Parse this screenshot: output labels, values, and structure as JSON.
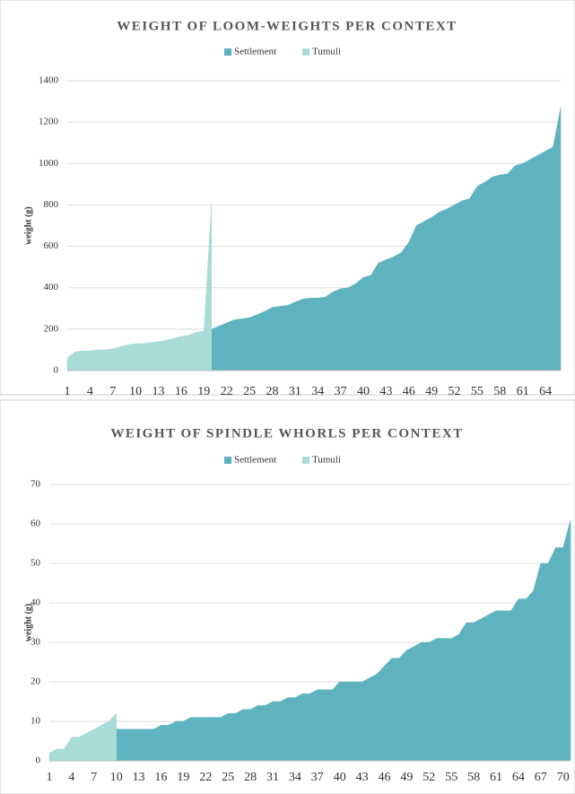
{
  "chart_data": [
    {
      "type": "area",
      "title": "WEIGHT OF LOOM-WEIGHTS PER CONTEXT",
      "y_label": "weight (g)",
      "x": [
        1,
        2,
        3,
        4,
        5,
        6,
        7,
        8,
        9,
        10,
        11,
        12,
        13,
        14,
        15,
        16,
        17,
        18,
        19,
        20,
        21,
        22,
        23,
        24,
        25,
        26,
        27,
        28,
        29,
        30,
        31,
        32,
        33,
        34,
        35,
        36,
        37,
        38,
        39,
        40,
        41,
        42,
        43,
        44,
        45,
        46,
        47,
        48,
        49,
        50,
        51,
        52,
        53,
        54,
        55,
        56,
        57,
        58,
        59,
        60,
        61,
        62,
        63,
        64,
        65,
        66
      ],
      "xlim": [
        1,
        66
      ],
      "xticks": [
        1,
        4,
        7,
        10,
        13,
        16,
        19,
        22,
        25,
        28,
        31,
        34,
        37,
        40,
        43,
        46,
        49,
        52,
        55,
        58,
        61,
        64
      ],
      "ylim": [
        0,
        1400
      ],
      "yticks": [
        0,
        200,
        400,
        600,
        800,
        1000,
        1200,
        1400
      ],
      "grid": true,
      "series": [
        {
          "name": "Settlement",
          "color": "#5fb3bf",
          "values": [
            null,
            null,
            null,
            null,
            null,
            null,
            null,
            null,
            null,
            null,
            null,
            null,
            null,
            null,
            null,
            null,
            null,
            null,
            null,
            200,
            215,
            230,
            245,
            250,
            255,
            270,
            285,
            305,
            310,
            315,
            330,
            345,
            350,
            350,
            355,
            380,
            395,
            400,
            420,
            450,
            460,
            520,
            535,
            550,
            570,
            620,
            700,
            720,
            740,
            765,
            780,
            800,
            820,
            830,
            890,
            910,
            935,
            945,
            950,
            990,
            1000,
            1020,
            1040,
            1060,
            1080,
            1270
          ]
        },
        {
          "name": "Tumuli",
          "color": "#a9dcd6",
          "values": [
            60,
            90,
            95,
            95,
            100,
            100,
            105,
            115,
            125,
            130,
            130,
            135,
            140,
            145,
            155,
            165,
            170,
            185,
            190,
            810,
            null,
            null,
            null,
            null,
            null,
            null,
            null,
            null,
            null,
            null,
            null,
            null,
            null,
            null,
            null,
            null,
            null,
            null,
            null,
            null,
            null,
            null,
            null,
            null,
            null,
            null,
            null,
            null,
            null,
            null,
            null,
            null,
            null,
            null,
            null,
            null,
            null,
            null,
            null,
            null,
            null,
            null,
            null,
            null,
            null,
            null
          ]
        }
      ]
    },
    {
      "type": "area",
      "title": "WEIGHT OF SPINDLE WHORLS PER CONTEXT",
      "y_label": "weight (g)",
      "x": [
        1,
        2,
        3,
        4,
        5,
        6,
        7,
        8,
        9,
        10,
        11,
        12,
        13,
        14,
        15,
        16,
        17,
        18,
        19,
        20,
        21,
        22,
        23,
        24,
        25,
        26,
        27,
        28,
        29,
        30,
        31,
        32,
        33,
        34,
        35,
        36,
        37,
        38,
        39,
        40,
        41,
        42,
        43,
        44,
        45,
        46,
        47,
        48,
        49,
        50,
        51,
        52,
        53,
        54,
        55,
        56,
        57,
        58,
        59,
        60,
        61,
        62,
        63,
        64,
        65,
        66,
        67,
        68,
        69,
        70,
        71
      ],
      "xlim": [
        1,
        71
      ],
      "xticks": [
        1,
        4,
        7,
        10,
        13,
        16,
        19,
        22,
        25,
        28,
        31,
        34,
        37,
        40,
        43,
        46,
        49,
        52,
        55,
        58,
        61,
        64,
        67,
        70
      ],
      "ylim": [
        0,
        70
      ],
      "yticks": [
        0,
        10,
        20,
        30,
        40,
        50,
        60,
        70
      ],
      "grid": true,
      "series": [
        {
          "name": "Settlement",
          "color": "#5fb3bf",
          "values": [
            null,
            null,
            null,
            null,
            null,
            null,
            null,
            null,
            null,
            8,
            8,
            8,
            8,
            8,
            8,
            9,
            9,
            10,
            10,
            11,
            11,
            11,
            11,
            11,
            12,
            12,
            13,
            13,
            14,
            14,
            15,
            15,
            16,
            16,
            17,
            17,
            18,
            18,
            18,
            20,
            20,
            20,
            20,
            21,
            22,
            24,
            26,
            26,
            28,
            29,
            30,
            30,
            31,
            31,
            31,
            32,
            35,
            35,
            36,
            37,
            38,
            38,
            38,
            41,
            41,
            43,
            50,
            50,
            54,
            54,
            61
          ]
        },
        {
          "name": "Tumuli",
          "color": "#a9dcd6",
          "values": [
            2,
            3,
            3,
            6,
            6,
            7,
            8,
            9,
            10,
            12,
            null,
            null,
            null,
            null,
            null,
            null,
            null,
            null,
            null,
            null,
            null,
            null,
            null,
            null,
            null,
            null,
            null,
            null,
            null,
            null,
            null,
            null,
            null,
            null,
            null,
            null,
            null,
            null,
            null,
            null,
            null,
            null,
            null,
            null,
            null,
            null,
            null,
            null,
            null,
            null,
            null,
            null,
            null,
            null,
            null,
            null,
            null,
            null,
            null,
            null,
            null,
            null,
            null,
            null,
            null,
            null,
            null,
            null,
            null,
            null,
            null
          ]
        }
      ]
    }
  ]
}
